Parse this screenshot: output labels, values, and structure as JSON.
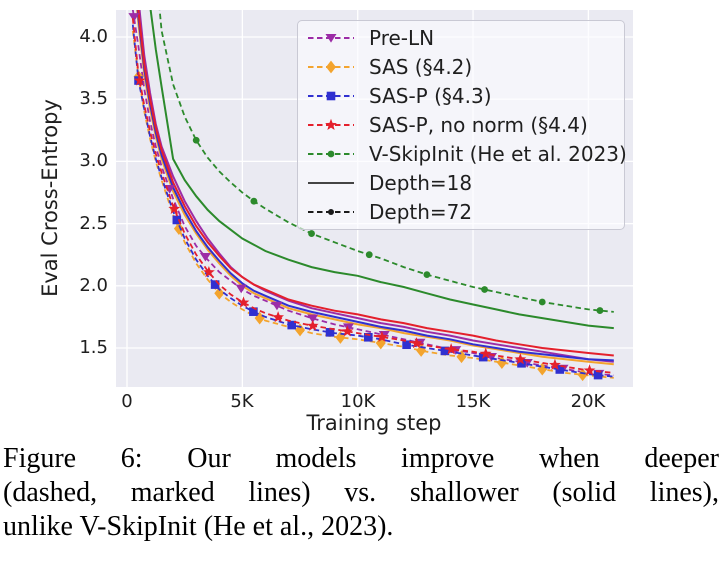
{
  "figure": {
    "ylabel": "Eval Cross-Entropy",
    "xlabel": "Training step",
    "yticks": [
      "4.0",
      "3.5",
      "3.0",
      "2.5",
      "2.0",
      "1.5"
    ],
    "xticks": [
      "0",
      "5K",
      "10K",
      "15K",
      "20K"
    ]
  },
  "legend": {
    "items": [
      {
        "label": "Pre-LN",
        "color": "#9c2ca6",
        "style": "dashed",
        "marker": "triangle-down"
      },
      {
        "label": "SAS (§4.2)",
        "color": "#f3a42e",
        "style": "dashed",
        "marker": "diamond"
      },
      {
        "label": "SAS-P (§4.3)",
        "color": "#3030d0",
        "style": "dashed",
        "marker": "square"
      },
      {
        "label": "SAS-P, no norm (§4.4)",
        "color": "#e4202c",
        "style": "dashed",
        "marker": "star"
      },
      {
        "label": "V-SkipInit (He et al. 2023)",
        "color": "#2c8a2c",
        "style": "dashed",
        "marker": "circle"
      },
      {
        "label": "Depth=18",
        "color": "#444444",
        "style": "solid",
        "marker": "none"
      },
      {
        "label": "Depth=72",
        "color": "#1a1a1a",
        "style": "dashed",
        "marker": "dot"
      }
    ]
  },
  "chart_data": {
    "type": "line",
    "title": "",
    "xlabel": "Training step",
    "ylabel": "Eval Cross-Entropy",
    "x_unit": "thousands of training steps",
    "xlim": [
      -0.5,
      21.9
    ],
    "ylim": [
      1.19,
      4.22
    ],
    "xtick_values": [
      0,
      5,
      10,
      15,
      20
    ],
    "ytick_values": [
      4.0,
      3.5,
      3.0,
      2.5,
      2.0,
      1.5
    ],
    "grid": true,
    "background": "#eaeaf2",
    "legend_position": "upper right",
    "x": [
      0.25,
      0.5,
      0.75,
      1,
      1.25,
      1.5,
      2,
      2.5,
      3,
      3.5,
      4,
      4.5,
      5,
      5.5,
      6,
      7,
      8,
      9,
      10,
      11,
      12,
      13,
      14,
      15,
      16,
      17,
      18,
      19,
      20,
      21.1
    ],
    "series": [
      {
        "name": "Pre-LN",
        "depth": 18,
        "color": "#9c2ca6",
        "style": "solid",
        "marker": "none",
        "values": [
          4.8,
          4.3,
          3.85,
          3.55,
          3.3,
          3.12,
          2.88,
          2.68,
          2.52,
          2.38,
          2.26,
          2.15,
          2.07,
          2.01,
          1.96,
          1.88,
          1.82,
          1.78,
          1.74,
          1.7,
          1.67,
          1.63,
          1.6,
          1.56,
          1.53,
          1.5,
          1.47,
          1.44,
          1.41,
          1.39
        ]
      },
      {
        "name": "SAS (§4.2)",
        "depth": 18,
        "color": "#f3a42e",
        "style": "solid",
        "marker": "none",
        "values": [
          4.6,
          4.1,
          3.7,
          3.42,
          3.2,
          3.02,
          2.76,
          2.57,
          2.42,
          2.29,
          2.18,
          2.08,
          2.0,
          1.94,
          1.9,
          1.82,
          1.77,
          1.73,
          1.69,
          1.66,
          1.62,
          1.59,
          1.56,
          1.52,
          1.49,
          1.46,
          1.43,
          1.41,
          1.39,
          1.37
        ]
      },
      {
        "name": "SAS-P (§4.3)",
        "depth": 18,
        "color": "#3030d0",
        "style": "solid",
        "marker": "none",
        "values": [
          4.65,
          4.15,
          3.74,
          3.46,
          3.23,
          3.05,
          2.79,
          2.6,
          2.44,
          2.31,
          2.2,
          2.1,
          2.02,
          1.96,
          1.92,
          1.84,
          1.79,
          1.75,
          1.71,
          1.67,
          1.64,
          1.6,
          1.57,
          1.53,
          1.5,
          1.47,
          1.45,
          1.43,
          1.41,
          1.4
        ]
      },
      {
        "name": "SAS-P, no norm (§4.4)",
        "depth": 18,
        "color": "#e4202c",
        "style": "solid",
        "marker": "none",
        "values": [
          4.7,
          4.2,
          3.78,
          3.5,
          3.27,
          3.09,
          2.83,
          2.64,
          2.48,
          2.35,
          2.24,
          2.14,
          2.07,
          2.01,
          1.97,
          1.89,
          1.84,
          1.8,
          1.77,
          1.73,
          1.7,
          1.66,
          1.63,
          1.6,
          1.56,
          1.53,
          1.5,
          1.48,
          1.46,
          1.44
        ]
      },
      {
        "name": "V-SkipInit (He et al. 2023)",
        "depth": 18,
        "color": "#2c8a2c",
        "style": "solid",
        "marker": "none",
        "values": [
          6.5,
          5.8,
          5.1,
          4.25,
          3.9,
          3.6,
          3.02,
          2.85,
          2.72,
          2.61,
          2.52,
          2.45,
          2.38,
          2.33,
          2.28,
          2.21,
          2.15,
          2.11,
          2.08,
          2.03,
          1.99,
          1.94,
          1.89,
          1.85,
          1.81,
          1.77,
          1.74,
          1.71,
          1.68,
          1.66
        ]
      },
      {
        "name": "V-SkipInit (He et al. 2023)",
        "depth": 72,
        "color": "#2c8a2c",
        "style": "dashed",
        "marker": "circle",
        "marker_x": [
          0.5,
          3,
          5.5,
          8,
          10.5,
          13,
          15.5,
          18,
          20.5
        ],
        "values": [
          7.0,
          6.3,
          5.6,
          5.0,
          4.55,
          4.05,
          3.62,
          3.36,
          3.17,
          3.03,
          2.92,
          2.83,
          2.75,
          2.68,
          2.62,
          2.51,
          2.42,
          2.35,
          2.28,
          2.22,
          2.15,
          2.09,
          2.04,
          1.99,
          1.95,
          1.91,
          1.87,
          1.84,
          1.81,
          1.79
        ]
      },
      {
        "name": "Pre-LN",
        "depth": 72,
        "color": "#9c2ca6",
        "style": "dashed",
        "marker": "triangle-down",
        "marker_x": [
          0.3,
          1.85,
          3.4,
          4.95,
          6.5,
          8.05,
          9.6,
          11.15,
          12.7,
          14.25,
          15.8,
          17.35,
          18.9,
          20.45
        ],
        "values": [
          4.22,
          3.92,
          3.58,
          3.32,
          3.12,
          2.96,
          2.7,
          2.48,
          2.32,
          2.21,
          2.11,
          2.04,
          1.97,
          1.92,
          1.88,
          1.8,
          1.74,
          1.69,
          1.65,
          1.61,
          1.57,
          1.53,
          1.49,
          1.46,
          1.42,
          1.39,
          1.36,
          1.33,
          1.3,
          1.28
        ]
      },
      {
        "name": "SAS (§4.2)",
        "depth": 72,
        "color": "#f3a42e",
        "style": "dashed",
        "marker": "diamond",
        "marker_x": [
          0.5,
          2.25,
          4,
          5.75,
          7.5,
          9.25,
          11,
          12.75,
          14.5,
          16.25,
          18,
          19.75
        ],
        "values": [
          4.05,
          3.68,
          3.4,
          3.18,
          3.0,
          2.85,
          2.57,
          2.35,
          2.18,
          2.05,
          1.94,
          1.87,
          1.81,
          1.76,
          1.72,
          1.67,
          1.62,
          1.59,
          1.57,
          1.54,
          1.51,
          1.47,
          1.44,
          1.42,
          1.39,
          1.36,
          1.33,
          1.3,
          1.28,
          1.26
        ]
      },
      {
        "name": "SAS-P (§4.3)",
        "depth": 72,
        "color": "#3030d0",
        "style": "dashed",
        "marker": "square",
        "marker_x": [
          0.5,
          2.16,
          3.82,
          5.48,
          7.14,
          8.8,
          10.46,
          12.12,
          13.78,
          15.44,
          17.1,
          18.76,
          20.42
        ],
        "values": [
          4.1,
          3.65,
          3.42,
          3.2,
          3.02,
          2.87,
          2.6,
          2.38,
          2.21,
          2.08,
          1.97,
          1.9,
          1.84,
          1.79,
          1.75,
          1.69,
          1.65,
          1.62,
          1.6,
          1.57,
          1.53,
          1.5,
          1.47,
          1.44,
          1.41,
          1.38,
          1.35,
          1.32,
          1.29,
          1.27
        ]
      },
      {
        "name": "SAS-P, no norm (§4.4)",
        "depth": 72,
        "color": "#e4202c",
        "style": "dashed",
        "marker": "star",
        "marker_x": [
          0.55,
          2.05,
          3.55,
          5.05,
          6.55,
          8.05,
          9.55,
          11.05,
          12.55,
          14.05,
          15.55,
          17.05,
          18.55,
          20.05
        ],
        "values": [
          4.15,
          3.7,
          3.45,
          3.24,
          3.06,
          2.91,
          2.64,
          2.42,
          2.25,
          2.12,
          2.01,
          1.93,
          1.87,
          1.82,
          1.78,
          1.72,
          1.68,
          1.65,
          1.62,
          1.59,
          1.56,
          1.52,
          1.49,
          1.47,
          1.44,
          1.41,
          1.38,
          1.35,
          1.32,
          1.3
        ]
      }
    ]
  },
  "caption": {
    "lines": [
      "Figure 6: Our models improve when deeper",
      "(dashed, marked lines) vs. shallower (solid lines),",
      "unlike V-SkipInit (He et al., 2023)."
    ]
  }
}
